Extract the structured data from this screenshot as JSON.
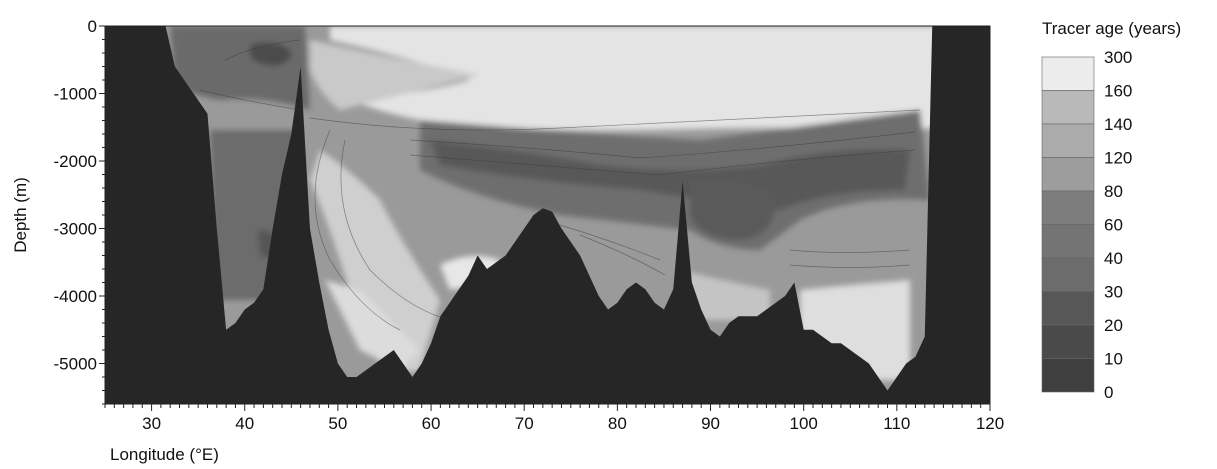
{
  "chart_data": {
    "type": "heatmap",
    "xlabel": "Longitude (°E)",
    "ylabel": "Depth (m)",
    "xlim": [
      25,
      120
    ],
    "ylim": [
      -5600,
      0
    ],
    "x_ticks": [
      30,
      40,
      50,
      60,
      70,
      80,
      90,
      100,
      110,
      120
    ],
    "x_tick_labels": [
      "30",
      "40",
      "50",
      "60",
      "70",
      "80",
      "90",
      "100",
      "110",
      "120"
    ],
    "y_ticks": [
      0,
      -1000,
      -2000,
      -3000,
      -4000,
      -5000
    ],
    "y_tick_labels": [
      "0",
      "-1000",
      "-2000",
      "-3000",
      "-4000",
      "-5000"
    ],
    "grid": false,
    "legend": {
      "title": "Tracer age (years)",
      "placement": "right",
      "levels": [
        "300",
        "160",
        "140",
        "120",
        "80",
        "60",
        "40",
        "30",
        "20",
        "10",
        "0"
      ],
      "colors": [
        "#ececec",
        "#b9b9b9",
        "#ababab",
        "#9d9d9d",
        "#7d7d7d",
        "#747474",
        "#6c6c6c",
        "#575757",
        "#4a4a4a",
        "#3f3f3f",
        "#262626"
      ]
    },
    "land_color": "#262626",
    "bathymetry": {
      "longitude": [
        25,
        31.5,
        32.5,
        34,
        36,
        37,
        38,
        39,
        40,
        41,
        42,
        43,
        44,
        45,
        46,
        47,
        48,
        49,
        50,
        51,
        52,
        53,
        54,
        55,
        56,
        57,
        58,
        59,
        60,
        61,
        62,
        63,
        64,
        65,
        66,
        67,
        68,
        69,
        70,
        71,
        72,
        73,
        74,
        75,
        76,
        77,
        78,
        79,
        80,
        81,
        82,
        83,
        84,
        85,
        86,
        87,
        88,
        89,
        90,
        91,
        92,
        93,
        94,
        95,
        96,
        97,
        98,
        99,
        100,
        101,
        102,
        103,
        104,
        105,
        106,
        107,
        108,
        109,
        110,
        111,
        112,
        113,
        113.8,
        120
      ],
      "seafloor_depth_m": [
        0,
        0,
        -600,
        -900,
        -1300,
        -3000,
        -4500,
        -4400,
        -4200,
        -4100,
        -3900,
        -3000,
        -2200,
        -1600,
        -600,
        -3000,
        -3800,
        -4500,
        -5000,
        -5200,
        -5200,
        -5100,
        -5000,
        -4900,
        -4800,
        -5000,
        -5200,
        -5000,
        -4700,
        -4300,
        -4100,
        -3900,
        -3700,
        -3400,
        -3600,
        -3500,
        -3400,
        -3200,
        -3000,
        -2800,
        -2700,
        -2750,
        -3000,
        -3200,
        -3400,
        -3700,
        -4000,
        -4200,
        -4100,
        -3900,
        -3800,
        -3900,
        -4100,
        -4200,
        -3900,
        -2300,
        -3800,
        -4200,
        -4500,
        -4600,
        -4400,
        -4300,
        -4300,
        -4300,
        -4200,
        -4100,
        -4000,
        -3800,
        -4500,
        -4500,
        -4600,
        -4700,
        -4700,
        -4800,
        -4900,
        -5000,
        -5200,
        -5400,
        -5200,
        -5000,
        -4900,
        -4600,
        0,
        0
      ]
    },
    "surface_age": {
      "longitude": [
        32,
        40,
        46,
        50,
        60,
        70,
        80,
        90,
        100,
        108,
        113
      ],
      "age_band_years": [
        "30",
        "20",
        "30",
        "60",
        "120",
        "300",
        "300",
        "300",
        "300",
        "160",
        "140"
      ]
    },
    "intermediate_age_1500m": {
      "longitude": [
        38,
        45,
        50,
        60,
        70,
        80,
        90,
        100,
        110
      ],
      "age_band_years": [
        "40",
        "30",
        "120",
        "60",
        "40",
        "30",
        "40",
        "40",
        "30"
      ]
    },
    "deep_age_4000m": {
      "longitude": [
        40,
        50,
        55,
        65,
        78,
        92,
        103,
        108
      ],
      "age_band_years": [
        "30",
        "160",
        "300",
        "300",
        "120",
        "160",
        "300",
        "300"
      ]
    }
  }
}
